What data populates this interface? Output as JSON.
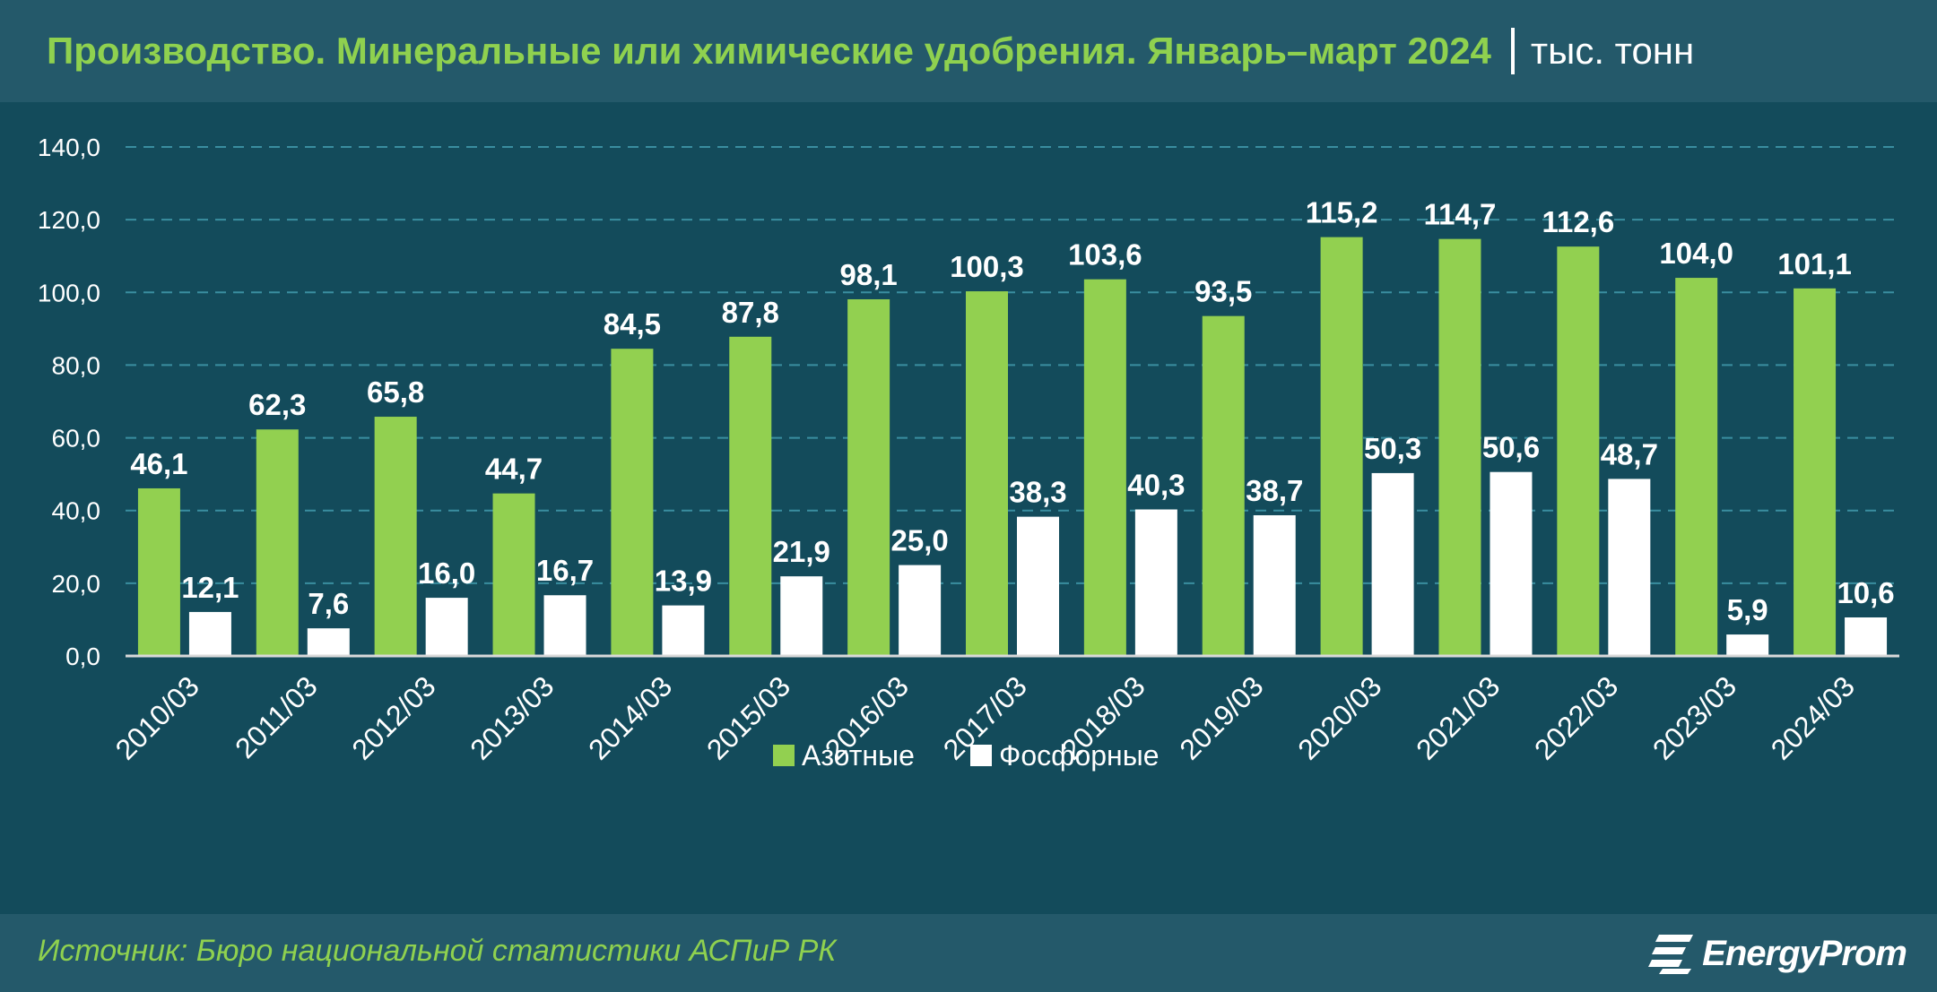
{
  "header": {
    "title": "Производство. Минеральные или химические удобрения. Январь–март 2024",
    "unit": "тыс. тонн"
  },
  "footer": {
    "source": "Источник: Бюро национальной статистики АСПиР РК",
    "brand": "EnergyProm"
  },
  "colors": {
    "series_1": "#92d050",
    "series_2": "#ffffff",
    "title": "#8fd14f",
    "gridline": "#3a8ea0"
  },
  "chart_data": {
    "type": "bar",
    "title": "Производство. Минеральные или химические удобрения. Январь–март 2024",
    "xlabel": "",
    "ylabel": "",
    "ylim": [
      0,
      140
    ],
    "yticks": [
      "0,0",
      "20,0",
      "40,0",
      "60,0",
      "80,0",
      "100,0",
      "120,0",
      "140,0"
    ],
    "grid": true,
    "legend": "bottom",
    "categories": [
      "2010/03",
      "2011/03",
      "2012/03",
      "2013/03",
      "2014/03",
      "2015/03",
      "2016/03",
      "2017/03",
      "2018/03",
      "2019/03",
      "2020/03",
      "2021/03",
      "2022/03",
      "2023/03",
      "2024/03"
    ],
    "series": [
      {
        "name": "Азотные",
        "values": [
          46.1,
          62.3,
          65.8,
          44.7,
          84.5,
          87.8,
          98.1,
          100.3,
          103.6,
          93.5,
          115.2,
          114.7,
          112.6,
          104.0,
          101.1
        ],
        "labels": [
          "46,1",
          "62,3",
          "65,8",
          "44,7",
          "84,5",
          "87,8",
          "98,1",
          "100,3",
          "103,6",
          "93,5",
          "115,2",
          "114,7",
          "112,6",
          "104,0",
          "101,1"
        ]
      },
      {
        "name": "Фосфорные",
        "values": [
          12.1,
          7.6,
          16.0,
          16.7,
          13.9,
          21.9,
          25.0,
          38.3,
          40.3,
          38.7,
          50.3,
          50.6,
          48.7,
          5.9,
          10.6
        ],
        "labels": [
          "12,1",
          "7,6",
          "16,0",
          "16,7",
          "13,9",
          "21,9",
          "25,0",
          "38,3",
          "40,3",
          "38,7",
          "50,3",
          "50,6",
          "48,7",
          "5,9",
          "10,6"
        ]
      }
    ]
  }
}
